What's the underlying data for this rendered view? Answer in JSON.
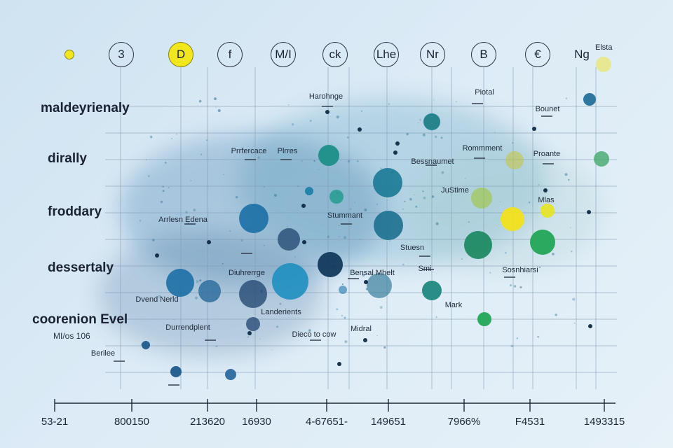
{
  "chart_data": {
    "type": "scatter",
    "title": "",
    "column_headers": [
      "",
      "3",
      "D",
      "f",
      "M/I",
      "ck",
      "Lhe",
      "Nr",
      "B",
      "€",
      "Ng"
    ],
    "corner_text": "Elsta",
    "row_labels": [
      "maldeyrienaly",
      "dirally",
      "froddary",
      "dessertaly",
      "coorenion Evel"
    ],
    "sub_label": "MI/os 106",
    "x_tick_labels": [
      "53-21",
      "800150",
      "213620",
      "16930",
      "4-67651-",
      "149651",
      "7966%",
      "F4531",
      "1493315"
    ],
    "annotations": [
      "Harohnge",
      "Piotal",
      "Bounet",
      "Prrfercace",
      "Plrres",
      "Bessnaumet",
      "Rommment",
      "Proante",
      "JuStime",
      "Mlas",
      "Arrlesn Edena",
      "Stummant",
      "Stuesn",
      "Diuhrerrge",
      "Bensal Mhelt",
      "Smi",
      "Sosnhiarsi",
      "Dvend Nerld",
      "Mark",
      "Landerients",
      "Durrendplent",
      "Dieco to cow",
      "Midral",
      "Berilee"
    ],
    "series": [
      {
        "values": [
          {
            "x": 0,
            "y": 3.2
          },
          {
            "x": 0.6,
            "y": 2.8
          },
          {
            "x": 1.1,
            "y": 4.0
          },
          {
            "x": 1.4,
            "y": 3.3
          },
          {
            "x": 1.6,
            "y": 2.4
          },
          {
            "x": 2.0,
            "y": 4.2
          },
          {
            "x": 2.4,
            "y": 2.6
          },
          {
            "x": 3.0,
            "y": 1.7
          },
          {
            "x": 3.7,
            "y": 3.2
          },
          {
            "x": 4.3,
            "y": 3.8
          },
          {
            "x": 4.7,
            "y": 4.5
          },
          {
            "x": 5.3,
            "y": 5.1
          },
          {
            "x": 5.9,
            "y": 4.9
          },
          {
            "x": 6.6,
            "y": 6.0
          },
          {
            "x": 7.3,
            "y": 5.3
          },
          {
            "x": 7.6,
            "y": 6.3
          },
          {
            "x": 8.0,
            "y": 6.9
          }
        ]
      }
    ],
    "colors": {
      "dark_navy": "#123a5c",
      "ocean_blue": "#1c6fa6",
      "teal": "#1d8f88",
      "green": "#22a657",
      "lime": "#9dc52a",
      "yellow": "#f1e21b",
      "grid": "#7f98b0"
    }
  }
}
